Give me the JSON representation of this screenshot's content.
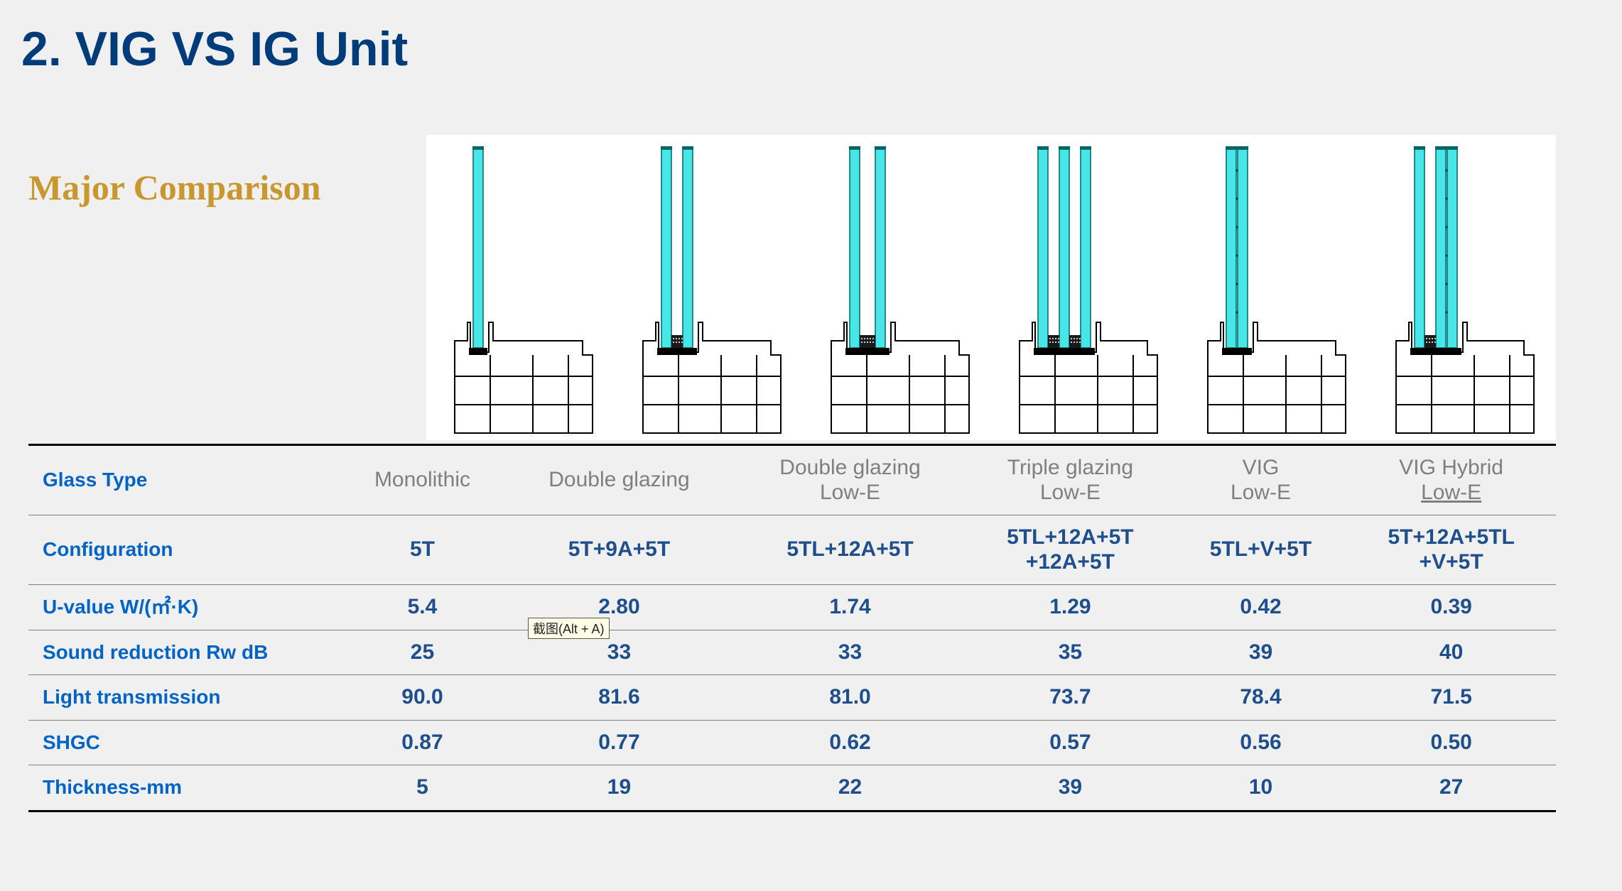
{
  "title": "2. VIG VS IG Unit",
  "subtitle": "Major Comparison",
  "tooltip": "截图(Alt + A)",
  "colors": {
    "title_color": "#003b7a",
    "subtitle_color": "#c9972f",
    "rowhead_color": "#0064c6",
    "colhead_color": "#7f7f7f",
    "data_color": "#1f4e8c",
    "pane_fill": "#48e6e6",
    "pane_stroke": "#006666",
    "background": "#f0f0f0",
    "diagram_bg": "#ffffff",
    "tooltip_bg": "#fffee8",
    "tooltip_border": "#5b5b3f",
    "border_color": "#7f7f7f",
    "border_heavy": "#000000"
  },
  "columns": [
    {
      "label_line1": "Monolithic",
      "label_line2": "",
      "panes": 1,
      "gaps": 0,
      "vig": false
    },
    {
      "label_line1": "Double glazing",
      "label_line2": "",
      "panes": 2,
      "gaps": 1,
      "vig": false
    },
    {
      "label_line1": "Double glazing",
      "label_line2": "Low-E",
      "panes": 2,
      "gaps": 1,
      "vig": false,
      "gap_wide": true
    },
    {
      "label_line1": "Triple glazing",
      "label_line2": "Low-E",
      "panes": 3,
      "gaps": 2,
      "vig": false
    },
    {
      "label_line1": "VIG",
      "label_line2": "Low-E",
      "panes": 2,
      "gaps": 0,
      "vig": true
    },
    {
      "label_line1": "VIG Hybrid",
      "label_line2": "Low-E",
      "label_line2_underline": true,
      "panes": 3,
      "gaps": 1,
      "vig": true
    }
  ],
  "rows": [
    {
      "header": "Glass Type",
      "is_column_header_row": true
    },
    {
      "header": "Configuration",
      "values": [
        "5T",
        "5T+9A+5T",
        "5TL+12A+5T",
        "5TL+12A+5T\n+12A+5T",
        "5TL+V+5T",
        "5T+12A+5TL\n+V+5T"
      ]
    },
    {
      "header": "U-value W/(㎡·K)",
      "values": [
        "5.4",
        "2.80",
        "1.74",
        "1.29",
        "0.42",
        "0.39"
      ]
    },
    {
      "header": "Sound reduction Rw dB",
      "values": [
        "25",
        "33",
        "33",
        "35",
        "39",
        "40"
      ]
    },
    {
      "header": "Light transmission",
      "values": [
        "90.0",
        "81.6",
        "81.0",
        "73.7",
        "78.4",
        "71.5"
      ]
    },
    {
      "header": "SHGC",
      "values": [
        "0.87",
        "0.77",
        "0.62",
        "0.57",
        "0.56",
        "0.50"
      ]
    },
    {
      "header": "Thickness-mm",
      "values": [
        "5",
        "19",
        "22",
        "39",
        "10",
        "27"
      ]
    }
  ]
}
